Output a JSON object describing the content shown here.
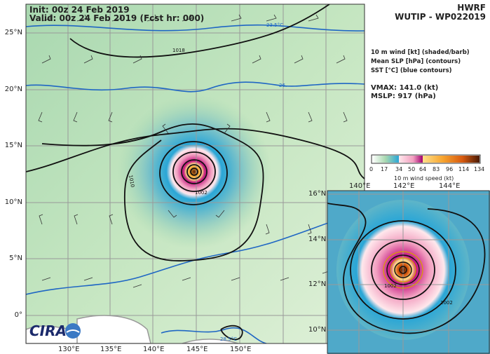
{
  "header": {
    "init": "Init:   00z 24 Feb 2019",
    "valid": "Valid: 00z 24 Feb 2019 (Fcst hr: 000)"
  },
  "title": {
    "model": "HWRF",
    "storm": "WUTIP - WP022019"
  },
  "legend_text": {
    "line1": "10 m wind [kt] (shaded/barb)",
    "line2": "Mean SLP [hPa] (contours)",
    "line3": "SST [°C] (blue contours)"
  },
  "stats": {
    "vmax": "VMAX: 141.0 (kt)",
    "mslp": "MSLP:  917 (hPa)"
  },
  "colorbar": {
    "label": "10 m wind speed (kt)",
    "ticks": [
      "0",
      "17",
      "34",
      "50",
      "64",
      "83",
      "96",
      "114",
      "134"
    ],
    "colors": [
      "#ffffff",
      "#cfe8c8",
      "#8cc9a0",
      "#2aa6d6",
      "#ffe8ec",
      "#f29fc0",
      "#c2157f",
      "#ffe08a",
      "#f7a530",
      "#d75a10",
      "#5a2005"
    ]
  },
  "main_map": {
    "lon_labels": [
      "130°E",
      "135°E",
      "140°E",
      "145°E",
      "150°E"
    ],
    "lat_labels": [
      "25°N",
      "20°N",
      "15°N",
      "10°N",
      "5°N",
      "0°"
    ],
    "contour_labels": [
      "1018",
      "1010",
      "1002"
    ],
    "sst_labels": [
      "23.5°C",
      "26.",
      "28.5°C"
    ]
  },
  "inset_map": {
    "lon_labels": [
      "140°E",
      "142°E",
      "144°E"
    ],
    "lat_labels": [
      "16°N",
      "14°N",
      "12°N",
      "10°N"
    ],
    "contour_labels": [
      "1002",
      "1002"
    ]
  },
  "logo": {
    "text": "CIRA"
  }
}
